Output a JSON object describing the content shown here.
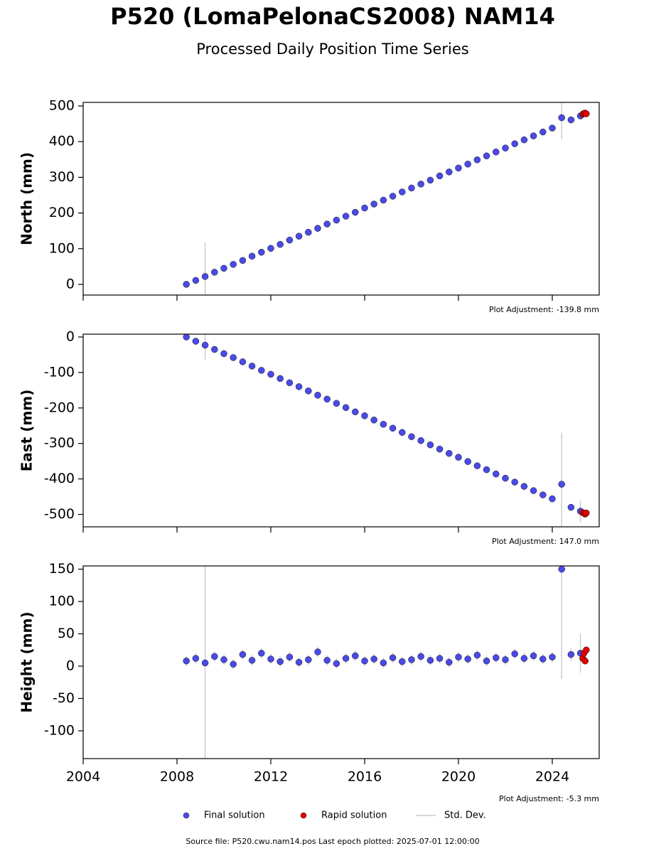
{
  "title": "P520 (LomaPelonaCS2008) NAM14",
  "subtitle": "Processed Daily Position Time Series",
  "legend_std_dev": {
    "name": "Std. Dev.",
    "color": "#cccccc"
  },
  "source_note": "Source file: P520.cwu.nam14.pos  Last epoch plotted: 2025-07-01 12:00:00",
  "chart_data": [
    {
      "type": "scatter",
      "y_label": "North (mm)",
      "annotation": "Plot Adjustment: -139.8 mm",
      "xlim": [
        2004,
        2026
      ],
      "xticks": [
        2004,
        2008,
        2012,
        2016,
        2020,
        2024
      ],
      "show_xtick_labels": false,
      "ylim": [
        -30,
        510
      ],
      "yticks": [
        0,
        100,
        200,
        300,
        400,
        500
      ],
      "series": [
        {
          "name": "Final solution",
          "color": "#4a4ae8",
          "x": [
            2008.4,
            2008.8,
            2009.2,
            2009.6,
            2010.0,
            2010.4,
            2010.8,
            2011.2,
            2011.6,
            2012.0,
            2012.4,
            2012.8,
            2013.2,
            2013.6,
            2014.0,
            2014.4,
            2014.8,
            2015.2,
            2015.6,
            2016.0,
            2016.4,
            2016.8,
            2017.2,
            2017.6,
            2018.0,
            2018.4,
            2018.8,
            2019.2,
            2019.6,
            2020.0,
            2020.4,
            2020.8,
            2021.2,
            2021.6,
            2022.0,
            2022.4,
            2022.8,
            2023.2,
            2023.6,
            2024.0,
            2024.4,
            2024.8,
            2025.2
          ],
          "values": [
            0,
            11,
            22,
            34,
            45,
            56,
            67,
            79,
            90,
            101,
            112,
            124,
            135,
            146,
            157,
            169,
            180,
            191,
            202,
            214,
            225,
            236,
            247,
            259,
            270,
            281,
            292,
            304,
            315,
            326,
            337,
            349,
            360,
            371,
            382,
            394,
            405,
            416,
            427,
            438,
            467,
            461,
            472
          ],
          "errors": [
            4,
            4,
            95,
            3,
            3,
            3,
            3,
            3,
            3,
            3,
            3,
            3,
            3,
            3,
            3,
            3,
            3,
            3,
            3,
            3,
            3,
            3,
            3,
            3,
            3,
            3,
            3,
            3,
            3,
            3,
            3,
            3,
            3,
            3,
            3,
            3,
            3,
            3,
            3,
            3,
            60,
            4,
            4
          ]
        },
        {
          "name": "Rapid solution",
          "color": "#e00000",
          "x": [
            2025.3,
            2025.35,
            2025.4,
            2025.45
          ],
          "values": [
            477,
            479,
            480,
            478
          ]
        }
      ]
    },
    {
      "type": "scatter",
      "y_label": "East (mm)",
      "annotation": "Plot Adjustment: 147.0 mm",
      "xlim": [
        2004,
        2026
      ],
      "xticks": [
        2004,
        2008,
        2012,
        2016,
        2020,
        2024
      ],
      "show_xtick_labels": false,
      "ylim": [
        -535,
        8
      ],
      "yticks": [
        0,
        -100,
        -200,
        -300,
        -400,
        -500
      ],
      "series": [
        {
          "name": "Final solution",
          "color": "#4a4ae8",
          "x": [
            2008.4,
            2008.8,
            2009.2,
            2009.6,
            2010.0,
            2010.4,
            2010.8,
            2011.2,
            2011.6,
            2012.0,
            2012.4,
            2012.8,
            2013.2,
            2013.6,
            2014.0,
            2014.4,
            2014.8,
            2015.2,
            2015.6,
            2016.0,
            2016.4,
            2016.8,
            2017.2,
            2017.6,
            2018.0,
            2018.4,
            2018.8,
            2019.2,
            2019.6,
            2020.0,
            2020.4,
            2020.8,
            2021.2,
            2021.6,
            2022.0,
            2022.4,
            2022.8,
            2023.2,
            2023.6,
            2024.0,
            2024.4,
            2024.8,
            2025.2
          ],
          "values": [
            0,
            -12,
            -23,
            -35,
            -47,
            -58,
            -70,
            -82,
            -94,
            -105,
            -117,
            -129,
            -140,
            -152,
            -164,
            -175,
            -187,
            -199,
            -211,
            -222,
            -234,
            -246,
            -257,
            -269,
            -281,
            -292,
            -304,
            -316,
            -328,
            -339,
            -351,
            -363,
            -374,
            -386,
            -398,
            -409,
            -421,
            -433,
            -445,
            -456,
            -415,
            -480,
            -491
          ],
          "errors": [
            4,
            4,
            40,
            3,
            3,
            3,
            3,
            3,
            3,
            3,
            3,
            3,
            3,
            3,
            3,
            3,
            3,
            3,
            3,
            3,
            3,
            3,
            3,
            3,
            3,
            3,
            3,
            3,
            3,
            3,
            3,
            3,
            3,
            3,
            3,
            3,
            3,
            3,
            3,
            3,
            145,
            4,
            30
          ]
        },
        {
          "name": "Rapid solution",
          "color": "#e00000",
          "x": [
            2025.3,
            2025.35,
            2025.4,
            2025.45
          ],
          "values": [
            -495,
            -497,
            -499,
            -496
          ]
        }
      ]
    },
    {
      "type": "scatter",
      "y_label": "Height (mm)",
      "annotation": "Plot Adjustment: -5.3 mm",
      "xlim": [
        2004,
        2026
      ],
      "xticks": [
        2004,
        2008,
        2012,
        2016,
        2020,
        2024
      ],
      "show_xtick_labels": true,
      "ylim": [
        -143,
        155
      ],
      "yticks": [
        -100,
        -50,
        0,
        50,
        100,
        150
      ],
      "series": [
        {
          "name": "Final solution",
          "color": "#4a4ae8",
          "x": [
            2008.4,
            2008.8,
            2009.2,
            2009.6,
            2010.0,
            2010.4,
            2010.8,
            2011.2,
            2011.6,
            2012.0,
            2012.4,
            2012.8,
            2013.2,
            2013.6,
            2014.0,
            2014.4,
            2014.8,
            2015.2,
            2015.6,
            2016.0,
            2016.4,
            2016.8,
            2017.2,
            2017.6,
            2018.0,
            2018.4,
            2018.8,
            2019.2,
            2019.6,
            2020.0,
            2020.4,
            2020.8,
            2021.2,
            2021.6,
            2022.0,
            2022.4,
            2022.8,
            2023.2,
            2023.6,
            2024.0,
            2024.4,
            2024.8,
            2025.2
          ],
          "values": [
            8,
            12,
            5,
            15,
            10,
            3,
            18,
            9,
            20,
            11,
            7,
            14,
            6,
            10,
            22,
            9,
            4,
            12,
            16,
            8,
            11,
            5,
            13,
            7,
            10,
            15,
            9,
            12,
            6,
            14,
            11,
            17,
            8,
            13,
            10,
            19,
            12,
            16,
            11,
            14,
            150,
            18,
            20
          ],
          "errors": [
            8,
            8,
            150,
            8,
            8,
            8,
            8,
            8,
            8,
            8,
            8,
            8,
            8,
            8,
            8,
            8,
            8,
            8,
            8,
            8,
            8,
            8,
            8,
            8,
            8,
            8,
            8,
            8,
            8,
            8,
            8,
            8,
            8,
            8,
            8,
            8,
            8,
            8,
            8,
            8,
            170,
            10,
            30
          ]
        },
        {
          "name": "Rapid solution",
          "color": "#e00000",
          "x": [
            2025.3,
            2025.35,
            2025.4,
            2025.45
          ],
          "values": [
            12,
            20,
            8,
            25
          ]
        }
      ]
    }
  ]
}
